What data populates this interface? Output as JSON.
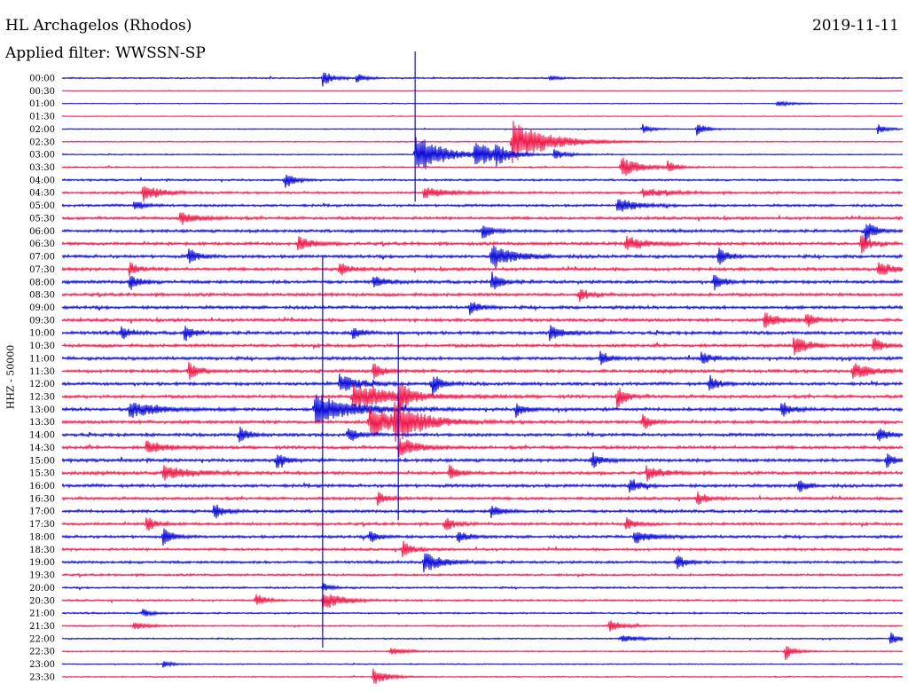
{
  "header": {
    "station": "HL Archagelos (Rhodos)",
    "date": "2019-11-11",
    "filter": "Applied filter: WWSSN-SP"
  },
  "colors": {
    "trace_a": "#0a0ad6",
    "trace_b": "#ee1a4a",
    "background": "#ffffff"
  },
  "chart_data": {
    "type": "line",
    "title": "HL Archagelos (Rhodos)",
    "subtitle": "Applied filter: WWSSN-SP",
    "ylabel": "HHZ - 50000",
    "xlabel": "",
    "grid": false,
    "y_tick_labels": [
      "00:00",
      "00:30",
      "01:00",
      "01:30",
      "02:00",
      "02:30",
      "03:00",
      "03:30",
      "04:00",
      "04:30",
      "05:00",
      "05:30",
      "06:00",
      "06:30",
      "07:00",
      "07:30",
      "08:00",
      "08:30",
      "09:00",
      "09:30",
      "10:00",
      "10:30",
      "11:00",
      "11:30",
      "12:00",
      "12:30",
      "13:00",
      "13:30",
      "14:00",
      "14:30",
      "15:00",
      "15:30",
      "16:00",
      "16:30",
      "17:00",
      "17:30",
      "18:00",
      "18:30",
      "19:00",
      "19:30",
      "20:00",
      "20:30",
      "21:00",
      "21:30",
      "22:00",
      "22:30",
      "23:00",
      "23:30"
    ],
    "series_color_pattern": [
      "trace_a",
      "trace_b"
    ],
    "x_range_fraction": [
      0,
      1
    ],
    "noise_level": [
      0.45,
      0.2,
      0.25,
      0.25,
      0.3,
      0.3,
      0.35,
      0.5,
      0.6,
      0.7,
      0.8,
      0.9,
      0.9,
      1.0,
      1.0,
      1.0,
      1.0,
      1.0,
      1.0,
      1.0,
      1.0,
      1.0,
      1.0,
      1.0,
      1.0,
      1.0,
      1.0,
      1.0,
      1.0,
      1.0,
      1.0,
      1.0,
      1.0,
      0.9,
      0.9,
      0.9,
      0.9,
      0.8,
      0.8,
      0.7,
      0.6,
      0.6,
      0.5,
      0.5,
      0.45,
      0.4,
      0.35,
      0.35
    ],
    "events": [
      {
        "row": 0,
        "x": 0.31,
        "amp": 10,
        "dur": 0.01
      },
      {
        "row": 0,
        "x": 0.35,
        "amp": 5,
        "dur": 0.01
      },
      {
        "row": 0,
        "x": 0.58,
        "amp": 3,
        "dur": 0.01
      },
      {
        "row": 2,
        "x": 0.85,
        "amp": 3,
        "dur": 0.02
      },
      {
        "row": 4,
        "x": 0.69,
        "amp": 6,
        "dur": 0.01
      },
      {
        "row": 4,
        "x": 0.755,
        "amp": 8,
        "dur": 0.01
      },
      {
        "row": 4,
        "x": 0.97,
        "amp": 6,
        "dur": 0.01
      },
      {
        "row": 5,
        "x": 0.535,
        "amp": 25,
        "dur": 0.04
      },
      {
        "row": 6,
        "x": 0.42,
        "amp": 25,
        "dur": 0.03
      },
      {
        "row": 6,
        "x": 0.49,
        "amp": 16,
        "dur": 0.02
      },
      {
        "row": 6,
        "x": 0.515,
        "amp": 10,
        "dur": 0.015
      },
      {
        "row": 6,
        "x": 0.585,
        "amp": 6,
        "dur": 0.015
      },
      {
        "row": 7,
        "x": 0.665,
        "amp": 12,
        "dur": 0.02
      },
      {
        "row": 7,
        "x": 0.72,
        "amp": 8,
        "dur": 0.01
      },
      {
        "row": 8,
        "x": 0.265,
        "amp": 10,
        "dur": 0.01
      },
      {
        "row": 9,
        "x": 0.095,
        "amp": 10,
        "dur": 0.02
      },
      {
        "row": 9,
        "x": 0.43,
        "amp": 6,
        "dur": 0.03
      },
      {
        "row": 9,
        "x": 0.69,
        "amp": 5,
        "dur": 0.03
      },
      {
        "row": 10,
        "x": 0.085,
        "amp": 7,
        "dur": 0.01
      },
      {
        "row": 10,
        "x": 0.66,
        "amp": 9,
        "dur": 0.02
      },
      {
        "row": 11,
        "x": 0.14,
        "amp": 7,
        "dur": 0.02
      },
      {
        "row": 12,
        "x": 0.5,
        "amp": 10,
        "dur": 0.01
      },
      {
        "row": 12,
        "x": 0.955,
        "amp": 14,
        "dur": 0.01
      },
      {
        "row": 13,
        "x": 0.28,
        "amp": 9,
        "dur": 0.015
      },
      {
        "row": 13,
        "x": 0.67,
        "amp": 9,
        "dur": 0.02
      },
      {
        "row": 13,
        "x": 0.95,
        "amp": 12,
        "dur": 0.01
      },
      {
        "row": 14,
        "x": 0.15,
        "amp": 10,
        "dur": 0.01
      },
      {
        "row": 14,
        "x": 0.51,
        "amp": 14,
        "dur": 0.025
      },
      {
        "row": 14,
        "x": 0.78,
        "amp": 12,
        "dur": 0.01
      },
      {
        "row": 15,
        "x": 0.08,
        "amp": 8,
        "dur": 0.01
      },
      {
        "row": 15,
        "x": 0.33,
        "amp": 9,
        "dur": 0.01
      },
      {
        "row": 15,
        "x": 0.97,
        "amp": 8,
        "dur": 0.02
      },
      {
        "row": 16,
        "x": 0.08,
        "amp": 10,
        "dur": 0.01
      },
      {
        "row": 16,
        "x": 0.37,
        "amp": 8,
        "dur": 0.01
      },
      {
        "row": 16,
        "x": 0.51,
        "amp": 12,
        "dur": 0.01
      },
      {
        "row": 16,
        "x": 0.775,
        "amp": 10,
        "dur": 0.01
      },
      {
        "row": 17,
        "x": 0.615,
        "amp": 8,
        "dur": 0.01
      },
      {
        "row": 18,
        "x": 0.485,
        "amp": 9,
        "dur": 0.01
      },
      {
        "row": 19,
        "x": 0.835,
        "amp": 10,
        "dur": 0.015
      },
      {
        "row": 19,
        "x": 0.885,
        "amp": 9,
        "dur": 0.01
      },
      {
        "row": 20,
        "x": 0.07,
        "amp": 8,
        "dur": 0.01
      },
      {
        "row": 20,
        "x": 0.145,
        "amp": 10,
        "dur": 0.01
      },
      {
        "row": 20,
        "x": 0.345,
        "amp": 8,
        "dur": 0.01
      },
      {
        "row": 20,
        "x": 0.58,
        "amp": 9,
        "dur": 0.015
      },
      {
        "row": 21,
        "x": 0.87,
        "amp": 12,
        "dur": 0.015
      },
      {
        "row": 21,
        "x": 0.965,
        "amp": 10,
        "dur": 0.01
      },
      {
        "row": 22,
        "x": 0.64,
        "amp": 8,
        "dur": 0.01
      },
      {
        "row": 22,
        "x": 0.76,
        "amp": 8,
        "dur": 0.01
      },
      {
        "row": 23,
        "x": 0.15,
        "amp": 12,
        "dur": 0.01
      },
      {
        "row": 23,
        "x": 0.37,
        "amp": 11,
        "dur": 0.01
      },
      {
        "row": 23,
        "x": 0.94,
        "amp": 10,
        "dur": 0.02
      },
      {
        "row": 24,
        "x": 0.33,
        "amp": 12,
        "dur": 0.02
      },
      {
        "row": 24,
        "x": 0.44,
        "amp": 14,
        "dur": 0.01
      },
      {
        "row": 24,
        "x": 0.77,
        "amp": 10,
        "dur": 0.01
      },
      {
        "row": 25,
        "x": 0.345,
        "amp": 14,
        "dur": 0.05
      },
      {
        "row": 25,
        "x": 0.4,
        "amp": 18,
        "dur": 0.01
      },
      {
        "row": 25,
        "x": 0.66,
        "amp": 14,
        "dur": 0.01
      },
      {
        "row": 26,
        "x": 0.08,
        "amp": 10,
        "dur": 0.03
      },
      {
        "row": 26,
        "x": 0.3,
        "amp": 18,
        "dur": 0.04
      },
      {
        "row": 26,
        "x": 0.54,
        "amp": 9,
        "dur": 0.01
      },
      {
        "row": 26,
        "x": 0.855,
        "amp": 10,
        "dur": 0.01
      },
      {
        "row": 27,
        "x": 0.365,
        "amp": 18,
        "dur": 0.03
      },
      {
        "row": 27,
        "x": 0.395,
        "amp": 20,
        "dur": 0.03
      },
      {
        "row": 27,
        "x": 0.69,
        "amp": 10,
        "dur": 0.01
      },
      {
        "row": 28,
        "x": 0.21,
        "amp": 10,
        "dur": 0.01
      },
      {
        "row": 28,
        "x": 0.34,
        "amp": 10,
        "dur": 0.01
      },
      {
        "row": 28,
        "x": 0.97,
        "amp": 10,
        "dur": 0.01
      },
      {
        "row": 29,
        "x": 0.1,
        "amp": 8,
        "dur": 0.02
      },
      {
        "row": 29,
        "x": 0.4,
        "amp": 12,
        "dur": 0.02
      },
      {
        "row": 30,
        "x": 0.255,
        "amp": 10,
        "dur": 0.01
      },
      {
        "row": 30,
        "x": 0.63,
        "amp": 10,
        "dur": 0.01
      },
      {
        "row": 30,
        "x": 0.98,
        "amp": 10,
        "dur": 0.01
      },
      {
        "row": 31,
        "x": 0.12,
        "amp": 8,
        "dur": 0.03
      },
      {
        "row": 31,
        "x": 0.46,
        "amp": 9,
        "dur": 0.01
      },
      {
        "row": 31,
        "x": 0.695,
        "amp": 7,
        "dur": 0.02
      },
      {
        "row": 32,
        "x": 0.675,
        "amp": 10,
        "dur": 0.01
      },
      {
        "row": 32,
        "x": 0.875,
        "amp": 8,
        "dur": 0.01
      },
      {
        "row": 33,
        "x": 0.375,
        "amp": 10,
        "dur": 0.01
      },
      {
        "row": 33,
        "x": 0.755,
        "amp": 8,
        "dur": 0.01
      },
      {
        "row": 34,
        "x": 0.18,
        "amp": 10,
        "dur": 0.01
      },
      {
        "row": 34,
        "x": 0.51,
        "amp": 9,
        "dur": 0.01
      },
      {
        "row": 35,
        "x": 0.1,
        "amp": 9,
        "dur": 0.01
      },
      {
        "row": 35,
        "x": 0.455,
        "amp": 9,
        "dur": 0.01
      },
      {
        "row": 35,
        "x": 0.67,
        "amp": 8,
        "dur": 0.01
      },
      {
        "row": 36,
        "x": 0.12,
        "amp": 10,
        "dur": 0.01
      },
      {
        "row": 36,
        "x": 0.365,
        "amp": 8,
        "dur": 0.01
      },
      {
        "row": 36,
        "x": 0.47,
        "amp": 8,
        "dur": 0.01
      },
      {
        "row": 36,
        "x": 0.68,
        "amp": 7,
        "dur": 0.02
      },
      {
        "row": 37,
        "x": 0.405,
        "amp": 10,
        "dur": 0.01
      },
      {
        "row": 38,
        "x": 0.43,
        "amp": 12,
        "dur": 0.02
      },
      {
        "row": 38,
        "x": 0.73,
        "amp": 10,
        "dur": 0.01
      },
      {
        "row": 40,
        "x": 0.31,
        "amp": 5,
        "dur": 0.01
      },
      {
        "row": 41,
        "x": 0.31,
        "amp": 12,
        "dur": 0.02
      },
      {
        "row": 41,
        "x": 0.23,
        "amp": 8,
        "dur": 0.01
      },
      {
        "row": 42,
        "x": 0.095,
        "amp": 5,
        "dur": 0.01
      },
      {
        "row": 43,
        "x": 0.085,
        "amp": 5,
        "dur": 0.015
      },
      {
        "row": 43,
        "x": 0.65,
        "amp": 7,
        "dur": 0.015
      },
      {
        "row": 44,
        "x": 0.665,
        "amp": 4,
        "dur": 0.02
      },
      {
        "row": 44,
        "x": 0.985,
        "amp": 8,
        "dur": 0.01
      },
      {
        "row": 45,
        "x": 0.86,
        "amp": 10,
        "dur": 0.01
      },
      {
        "row": 45,
        "x": 0.39,
        "amp": 4,
        "dur": 0.02
      },
      {
        "row": 46,
        "x": 0.12,
        "amp": 4,
        "dur": 0.01
      },
      {
        "row": 47,
        "x": 0.37,
        "amp": 10,
        "dur": 0.015
      }
    ],
    "spikes": [
      {
        "x": 0.42,
        "row_start": 0,
        "row_end": 9
      },
      {
        "x": 0.31,
        "row_start": 16,
        "row_end": 44
      },
      {
        "x": 0.4,
        "row_start": 22,
        "row_end": 34
      }
    ]
  }
}
